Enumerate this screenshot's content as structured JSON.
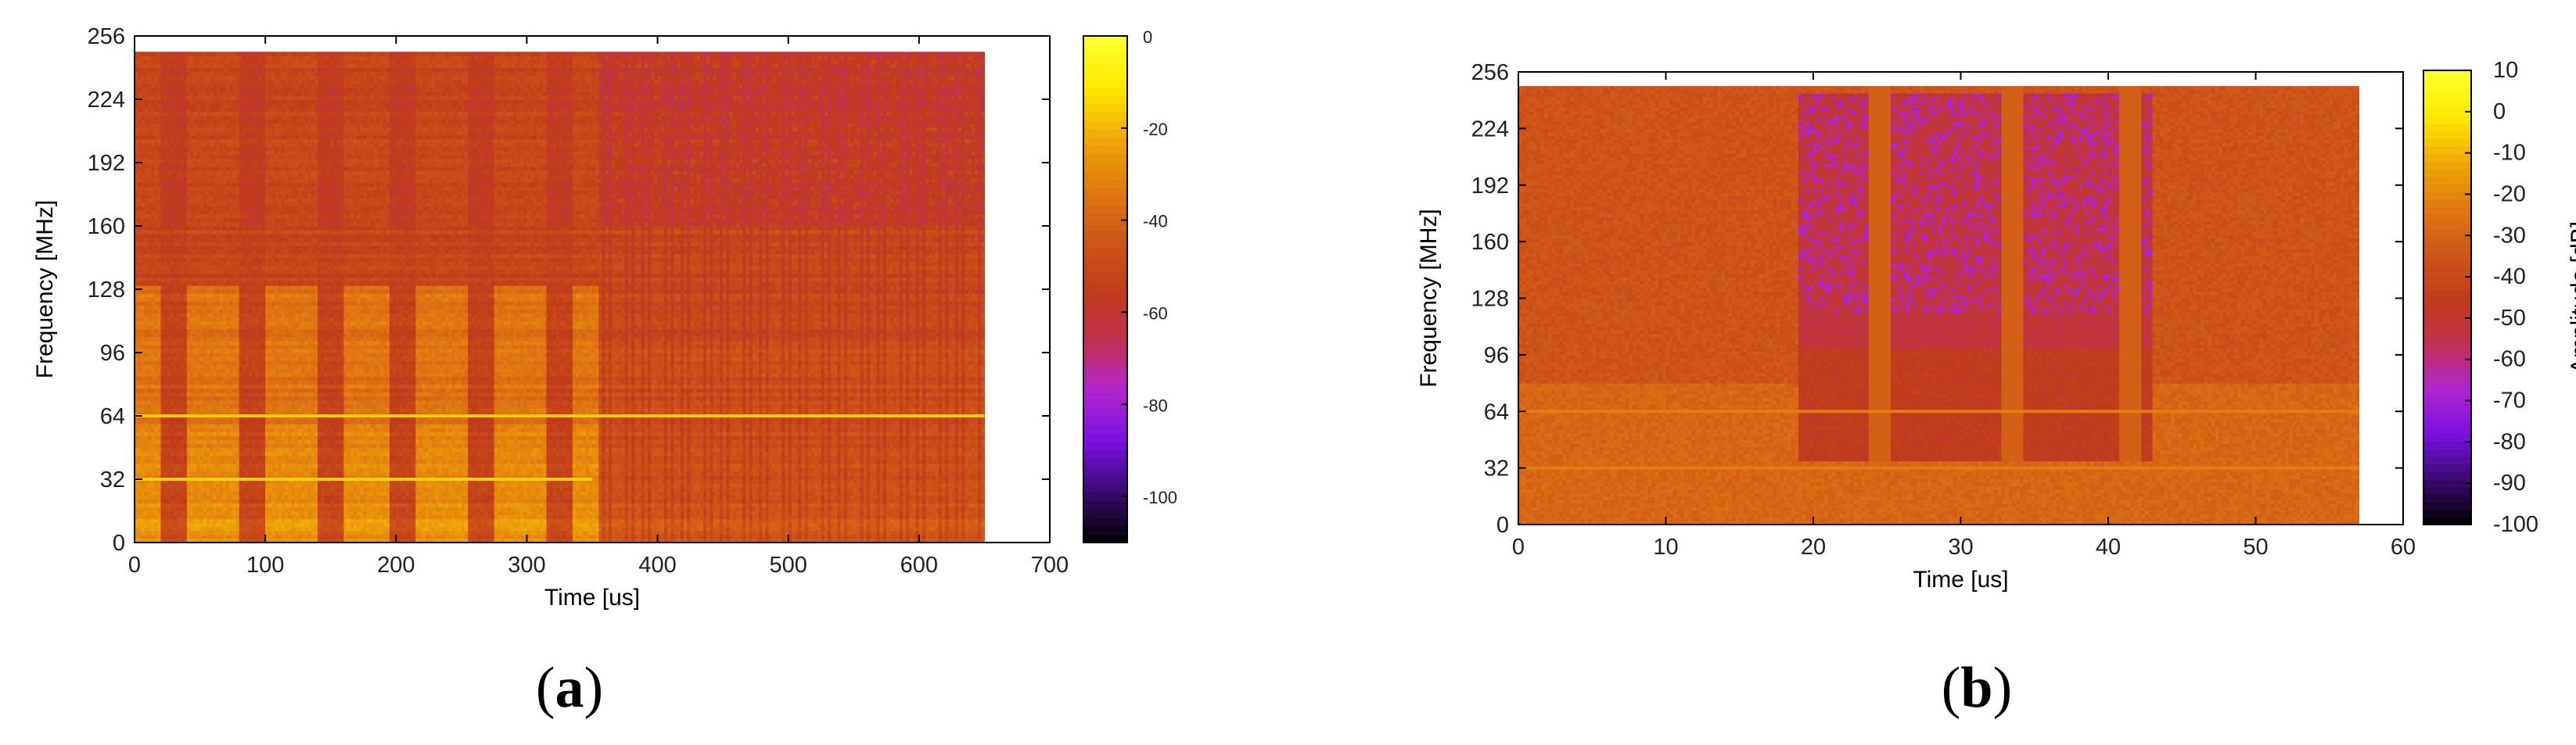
{
  "colors": {
    "scale": [
      "#000000",
      "#3a0a6e",
      "#7a10e0",
      "#b025d0",
      "#c23050",
      "#c03c18",
      "#d0561a",
      "#e07a10",
      "#f0a808",
      "#ffea00",
      "#ffff30"
    ],
    "axis": "#000000",
    "tick": "#222222"
  },
  "chart_data": [
    {
      "type": "heatmap",
      "panel_label": "a",
      "title": "",
      "xlabel": "Time [us]",
      "ylabel": "Frequency [MHz]",
      "xlim": [
        0,
        700
      ],
      "ylim": [
        0,
        256
      ],
      "x_ticks": [
        "0",
        "100",
        "200",
        "300",
        "400",
        "500",
        "600",
        "700"
      ],
      "y_ticks": [
        "0",
        "32",
        "64",
        "96",
        "128",
        "160",
        "192",
        "224",
        "256"
      ],
      "data_extent": {
        "x": [
          0,
          650
        ],
        "y": [
          0,
          248
        ]
      },
      "colorbar": {
        "label": "",
        "range": [
          -110,
          0
        ],
        "ticks": [
          "0",
          "-20",
          "-40",
          "-60",
          "-80",
          "-100"
        ]
      },
      "bursts_x_us": [
        [
          20,
          40
        ],
        [
          80,
          100
        ],
        [
          140,
          160
        ],
        [
          195,
          215
        ],
        [
          255,
          275
        ],
        [
          315,
          335
        ]
      ],
      "mixed_region_start_us": 355,
      "continuous_lines_mhz": [
        64,
        32
      ],
      "description_values": {
        "idle_level_db": -55,
        "burst_level_db": -35,
        "low_freq_level_db": -30,
        "upper_band_level_db": -60,
        "line_level_db": -15
      }
    },
    {
      "type": "heatmap",
      "panel_label": "b",
      "title": "",
      "xlabel": "Time [us]",
      "ylabel": "Frequency [MHz]",
      "xlim": [
        0,
        60
      ],
      "ylim": [
        0,
        256
      ],
      "x_ticks": [
        "0",
        "10",
        "20",
        "30",
        "40",
        "50",
        "60"
      ],
      "y_ticks": [
        "0",
        "32",
        "64",
        "96",
        "128",
        "160",
        "192",
        "224",
        "256"
      ],
      "data_extent": {
        "x": [
          0,
          57
        ],
        "y": [
          0,
          248
        ]
      },
      "colorbar": {
        "label": "Amplitude [dB]",
        "range": [
          -100,
          10
        ],
        "ticks": [
          "10",
          "0",
          "-10",
          "-20",
          "-30",
          "-40",
          "-50",
          "-60",
          "-70",
          "-80",
          "-90",
          "-100"
        ]
      },
      "quiet_window_us": [
        19,
        43
      ],
      "spikes_us": [
        24.5,
        33.5,
        41.5
      ],
      "continuous_lines_mhz": [
        64,
        32
      ],
      "description_values": {
        "background_level_db": -35,
        "quiet_window_level_db": -52,
        "purple_spot_level_db": -65,
        "line_level_db": -22
      }
    }
  ]
}
